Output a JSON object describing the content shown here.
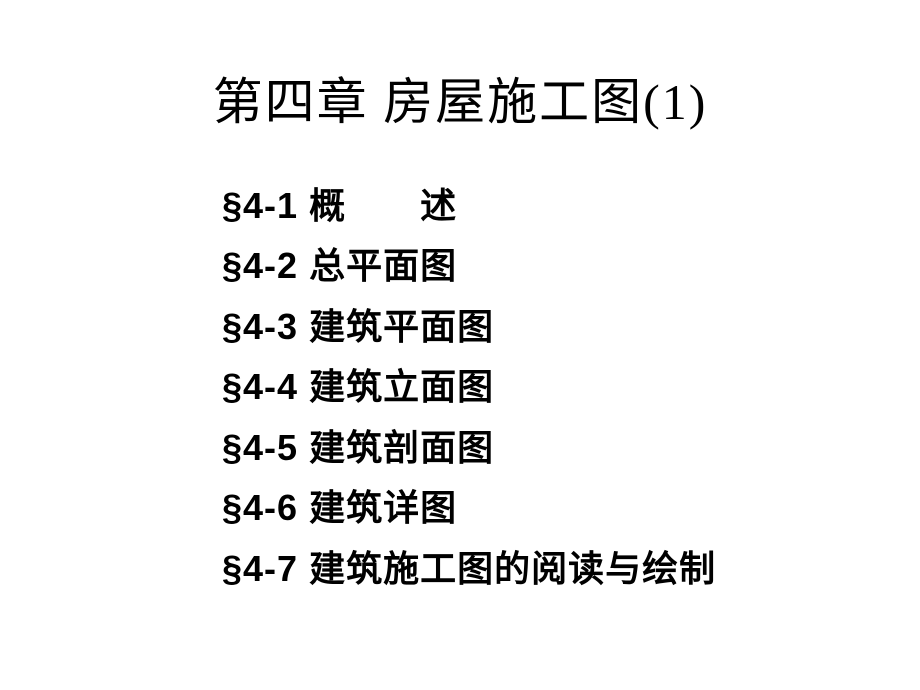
{
  "colors": {
    "background": "#ffffff",
    "text": "#000000"
  },
  "typography": {
    "title_fontsize": 50,
    "title_weight": "normal",
    "section_fontsize": 36,
    "section_weight": "bold",
    "line_height": 1.68
  },
  "chapter_title": "第四章  房屋施工图(1)",
  "sections": [
    {
      "prefix": "§4-1",
      "text": "  概　　述"
    },
    {
      "prefix": "§4-2",
      "text": " 总平面图"
    },
    {
      "prefix": "§4-3",
      "text": " 建筑平面图"
    },
    {
      "prefix": "§4-4",
      "text": " 建筑立面图"
    },
    {
      "prefix": "§4-5",
      "text": " 建筑剖面图"
    },
    {
      "prefix": "§4-6",
      "text": " 建筑详图"
    },
    {
      "prefix": "§4-7",
      "text": " 建筑施工图的阅读与绘制"
    }
  ]
}
